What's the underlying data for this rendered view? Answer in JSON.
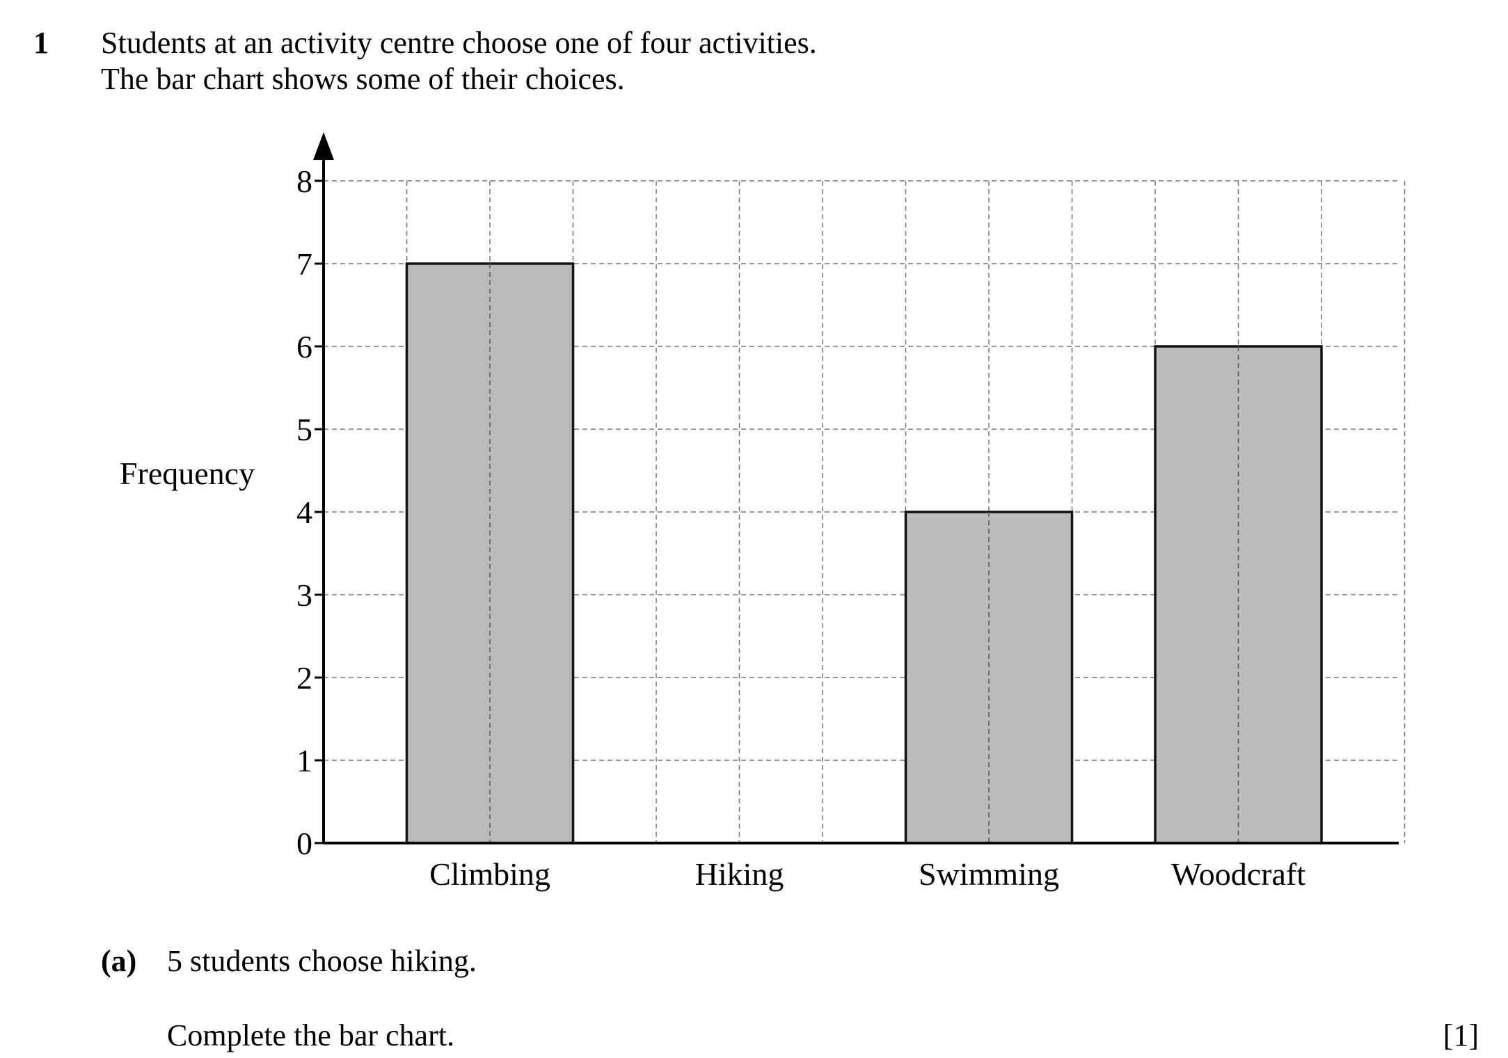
{
  "question": {
    "number": "1",
    "intro_line1": "Students at an activity centre choose one of four activities.",
    "intro_line2": "The bar chart shows some of their choices."
  },
  "chart_data": {
    "type": "bar",
    "categories": [
      "Climbing",
      "Hiking",
      "Swimming",
      "Woodcraft"
    ],
    "values": [
      7,
      null,
      4,
      6
    ],
    "ylabel": "Frequency",
    "xlabel": "",
    "ylim": [
      0,
      8
    ],
    "yticks": [
      0,
      1,
      2,
      3,
      4,
      5,
      6,
      7,
      8
    ],
    "grid": true,
    "colors": {
      "bar_fill": "#bbbbbb",
      "bar_stroke": "#111111",
      "grid": "#777777",
      "axis": "#000000"
    }
  },
  "part_a": {
    "label": "(a)",
    "text": "5 students choose hiking.",
    "instruction": "Complete the bar chart.",
    "marks": "[1]"
  }
}
